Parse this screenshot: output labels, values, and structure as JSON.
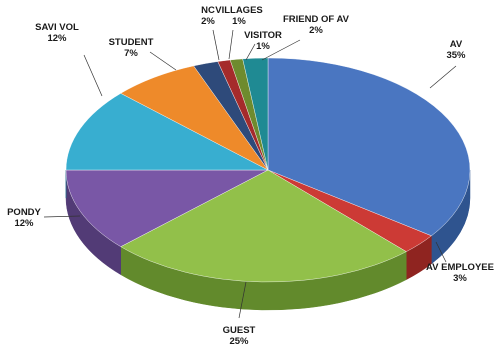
{
  "chart_data": {
    "type": "pie",
    "three_d": true,
    "slices": [
      {
        "label": "AV",
        "percent_label": "35%",
        "value": 35,
        "color": "#4a76c1",
        "side_color": "#2f548f"
      },
      {
        "label": "AV EMPLOYEE",
        "percent_label": "3%",
        "value": 3,
        "color": "#cc3a35",
        "side_color": "#8f2420"
      },
      {
        "label": "GUEST",
        "percent_label": "25%",
        "value": 25,
        "color": "#92c04a",
        "side_color": "#628a2c"
      },
      {
        "label": "PONDY",
        "percent_label": "12%",
        "value": 12,
        "color": "#7957a6",
        "side_color": "#523b76"
      },
      {
        "label": "SAVI VOL",
        "percent_label": "12%",
        "value": 12,
        "color": "#38aed0",
        "side_color": "#237993"
      },
      {
        "label": "STUDENT",
        "percent_label": "7%",
        "value": 7,
        "color": "#ee8a2a",
        "side_color": "#ad5e14"
      },
      {
        "label": "NC",
        "percent_label": "2%",
        "value": 2,
        "color": "#2e4a7a",
        "side_color": "#1d2f4e"
      },
      {
        "label": "VILLAGES",
        "percent_label": "1%",
        "value": 1,
        "color": "#a52b2b",
        "side_color": "#6e1b1b"
      },
      {
        "label": "VISITOR",
        "percent_label": "1%",
        "value": 1,
        "color": "#6e8b2e",
        "side_color": "#4a5e1e"
      },
      {
        "label": "FRIEND OF AV",
        "percent_label": "2%",
        "value": 2,
        "color": "#1f8a93",
        "side_color": "#145c62"
      }
    ]
  }
}
